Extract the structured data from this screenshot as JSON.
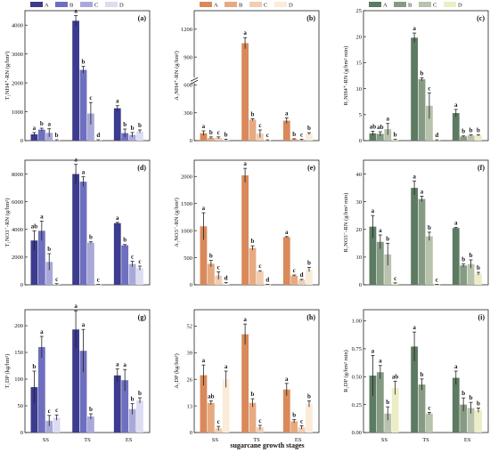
{
  "figure": {
    "xlabel": "sugarcane growth stages",
    "stages": [
      "SS",
      "TS",
      "ES"
    ],
    "legend_labels": [
      "A",
      "B",
      "C",
      "D"
    ],
    "colors": {
      "blue": [
        "#3b3b8f",
        "#6f6fbf",
        "#a9a9d9",
        "#dcdcf3"
      ],
      "orange": [
        "#d9895a",
        "#e6aa82",
        "#f1cdb2",
        "#faecd9"
      ],
      "green": [
        "#5d7a62",
        "#869b84",
        "#b8c2ac",
        "#ecedc4"
      ]
    }
  },
  "chart_data": [
    {
      "id": "a",
      "panel_label": "(a)",
      "type": "bar",
      "color_group": "blue",
      "ylabel": "T₁NH4⁺-RN (g/hm²)",
      "ylim": [
        0,
        4500
      ],
      "yticks": [
        0,
        1000,
        2000,
        3000,
        4000
      ],
      "categories": [
        "SS",
        "TS",
        "ES"
      ],
      "series": [
        {
          "name": "A",
          "values": [
            220,
            4150,
            1120
          ],
          "err": [
            60,
            180,
            90
          ]
        },
        {
          "name": "B",
          "values": [
            380,
            2450,
            260
          ],
          "err": [
            50,
            120,
            140
          ]
        },
        {
          "name": "C",
          "values": [
            270,
            940,
            200
          ],
          "err": [
            140,
            380,
            80
          ]
        },
        {
          "name": "D",
          "values": [
            20,
            20,
            320
          ],
          "err": [
            10,
            10,
            50
          ]
        }
      ],
      "letters": [
        [
          "a",
          "a",
          "a"
        ],
        [
          "b",
          "b",
          "b"
        ],
        [
          "a",
          "c",
          "b"
        ],
        [
          "b",
          "d",
          "b"
        ]
      ]
    },
    {
      "id": "b",
      "panel_label": "(b)",
      "type": "bar",
      "color_group": "orange",
      "ylabel": "A₁NH4⁺-RN (g/hm²)",
      "ylim": [
        0,
        1400
      ],
      "yticks": [
        0,
        300,
        600,
        900,
        1200
      ],
      "categories": [
        "SS",
        "TS",
        "ES"
      ],
      "axis_break": true,
      "series": [
        {
          "name": "A",
          "values": [
            80,
            1050,
            215
          ],
          "err": [
            25,
            60,
            30
          ]
        },
        {
          "name": "B",
          "values": [
            30,
            225,
            15
          ],
          "err": [
            10,
            10,
            5
          ]
        },
        {
          "name": "C",
          "values": [
            30,
            75,
            10
          ],
          "err": [
            10,
            40,
            5
          ]
        },
        {
          "name": "D",
          "values": [
            10,
            5,
            75
          ],
          "err": [
            5,
            3,
            10
          ]
        }
      ],
      "letters": [
        [
          "a",
          "a",
          "a"
        ],
        [
          "b",
          "b",
          "b"
        ],
        [
          "c",
          "c",
          "c"
        ],
        [
          "b",
          "c",
          "b"
        ]
      ]
    },
    {
      "id": "c",
      "panel_label": "(c)",
      "type": "bar",
      "color_group": "green",
      "ylabel": "R₁NH4⁺-RN (g/hm² min)",
      "ylim": [
        0,
        25
      ],
      "yticks": [
        0,
        5,
        10,
        15,
        20,
        25
      ],
      "categories": [
        "SS",
        "TS",
        "ES"
      ],
      "series": [
        {
          "name": "A",
          "values": [
            1.4,
            19.8,
            5.3
          ],
          "err": [
            0.4,
            0.9,
            0.7
          ]
        },
        {
          "name": "B",
          "values": [
            1.3,
            11.8,
            0.8
          ],
          "err": [
            0.4,
            0.3,
            0.1
          ]
        },
        {
          "name": "C",
          "values": [
            2.2,
            6.7,
            1.0
          ],
          "err": [
            1.1,
            2.5,
            0.1
          ]
        },
        {
          "name": "D",
          "values": [
            0.2,
            0.1,
            1.0
          ],
          "err": [
            0.05,
            0.05,
            0.1
          ]
        }
      ],
      "letters": [
        [
          "ab",
          "a",
          "a"
        ],
        [
          "ab",
          "b",
          "b"
        ],
        [
          "a",
          "c",
          "b"
        ],
        [
          "b",
          "d",
          "b"
        ]
      ]
    },
    {
      "id": "d",
      "panel_label": "(d)",
      "type": "bar",
      "color_group": "blue",
      "ylabel": "T₁NO3⁻-RN (g/hm²)",
      "ylim": [
        0,
        9000
      ],
      "yticks": [
        0,
        2000,
        4000,
        6000,
        8000
      ],
      "categories": [
        "SS",
        "TS",
        "ES"
      ],
      "series": [
        {
          "name": "A",
          "values": [
            3200,
            8000,
            4450
          ],
          "err": [
            700,
            700,
            60
          ]
        },
        {
          "name": "B",
          "values": [
            3900,
            7450,
            2850
          ],
          "err": [
            700,
            350,
            60
          ]
        },
        {
          "name": "C",
          "values": [
            1650,
            3050,
            1500
          ],
          "err": [
            600,
            60,
            200
          ]
        },
        {
          "name": "D",
          "values": [
            50,
            20,
            1200
          ],
          "err": [
            30,
            10,
            150
          ]
        }
      ],
      "letters": [
        [
          "ab",
          "a",
          "a"
        ],
        [
          "a",
          "a",
          "b"
        ],
        [
          "b",
          "b",
          "c"
        ],
        [
          "c",
          "c",
          "c"
        ]
      ]
    },
    {
      "id": "e",
      "panel_label": "(e)",
      "type": "bar",
      "color_group": "orange",
      "ylabel": "A₁NO3⁻-RN (g/hm²)",
      "ylim": [
        0,
        2300
      ],
      "yticks": [
        0,
        500,
        1000,
        1500,
        2000
      ],
      "categories": [
        "SS",
        "TS",
        "ES"
      ],
      "series": [
        {
          "name": "A",
          "values": [
            1080,
            2020,
            880
          ],
          "err": [
            250,
            130,
            10
          ]
        },
        {
          "name": "B",
          "values": [
            390,
            680,
            170
          ],
          "err": [
            60,
            40,
            10
          ]
        },
        {
          "name": "C",
          "values": [
            170,
            250,
            90
          ],
          "err": [
            70,
            10,
            10
          ]
        },
        {
          "name": "D",
          "values": [
            30,
            5,
            280
          ],
          "err": [
            10,
            2,
            40
          ]
        }
      ],
      "letters": [
        [
          "a",
          "a",
          "a"
        ],
        [
          "b",
          "b",
          "c"
        ],
        [
          "c",
          "c",
          "d"
        ],
        [
          "d",
          "d",
          "b"
        ]
      ]
    },
    {
      "id": "f",
      "panel_label": "(f)",
      "type": "bar",
      "color_group": "green",
      "ylabel": "R₁NO3⁻-RN (g/hm² min)",
      "ylim": [
        0,
        45
      ],
      "yticks": [
        0,
        10,
        20,
        30,
        40
      ],
      "categories": [
        "SS",
        "TS",
        "ES"
      ],
      "series": [
        {
          "name": "A",
          "values": [
            21,
            35,
            20.5
          ],
          "err": [
            4,
            2.5,
            0.2
          ]
        },
        {
          "name": "B",
          "values": [
            15.5,
            31,
            7
          ],
          "err": [
            2.5,
            1,
            0.5
          ]
        },
        {
          "name": "C",
          "values": [
            11,
            17.5,
            7.5
          ],
          "err": [
            4,
            1.5,
            1.5
          ]
        },
        {
          "name": "D",
          "values": [
            0.5,
            0.1,
            4
          ],
          "err": [
            0.2,
            0.05,
            0.5
          ]
        }
      ],
      "letters": [
        [
          "a",
          "a",
          "a"
        ],
        [
          "a",
          "a",
          "b"
        ],
        [
          "b",
          "b",
          "b"
        ],
        [
          "c",
          "c",
          "b"
        ]
      ]
    },
    {
      "id": "g",
      "panel_label": "(g)",
      "type": "bar",
      "color_group": "blue",
      "ylabel": "T₁DP (kg/hm²)",
      "ylim": [
        0,
        230
      ],
      "yticks": [
        0,
        50,
        100,
        150,
        200
      ],
      "categories": [
        "SS",
        "TS",
        "ES"
      ],
      "series": [
        {
          "name": "A",
          "values": [
            85,
            193,
            107
          ],
          "err": [
            30,
            35,
            12
          ]
        },
        {
          "name": "B",
          "values": [
            160,
            153,
            98
          ],
          "err": [
            20,
            40,
            20
          ]
        },
        {
          "name": "C",
          "values": [
            22,
            30,
            44
          ],
          "err": [
            10,
            5,
            10
          ]
        },
        {
          "name": "D",
          "values": [
            28,
            0,
            60
          ],
          "err": [
            5,
            0,
            5
          ]
        }
      ],
      "letters": [
        [
          "b",
          "a",
          "a"
        ],
        [
          "a",
          "a",
          "a"
        ],
        [
          "c",
          "b",
          "b"
        ],
        [
          "c",
          "",
          "b"
        ]
      ]
    },
    {
      "id": "h",
      "panel_label": "(h)",
      "type": "bar",
      "color_group": "orange",
      "ylabel": "A₁DP (kg/hm²)",
      "ylim": [
        0,
        60
      ],
      "yticks": [
        0,
        13,
        26,
        39,
        52
      ],
      "categories": [
        "SS",
        "TS",
        "ES"
      ],
      "series": [
        {
          "name": "A",
          "values": [
            28,
            48,
            21
          ],
          "err": [
            5,
            5,
            3
          ]
        },
        {
          "name": "B",
          "values": [
            14.5,
            14.5,
            5.5
          ],
          "err": [
            1,
            2,
            0.8
          ]
        },
        {
          "name": "C",
          "values": [
            2,
            2.5,
            2.5
          ],
          "err": [
            1,
            1,
            0.8
          ]
        },
        {
          "name": "D",
          "values": [
            26,
            0,
            14
          ],
          "err": [
            4,
            0,
            1.5
          ]
        }
      ],
      "letters": [
        [
          "a",
          "a",
          "a"
        ],
        [
          "ab",
          "b",
          "b"
        ],
        [
          "c",
          "c",
          "c"
        ],
        [
          "a",
          "",
          "b"
        ]
      ]
    },
    {
      "id": "i",
      "panel_label": "(i)",
      "type": "bar",
      "color_group": "green",
      "ylabel": "R₁DP (g/hm² min)",
      "ylim": [
        0,
        1.1
      ],
      "yticks": [
        0.0,
        0.25,
        0.5,
        0.75,
        1.0
      ],
      "ytick_labels": [
        "0.00",
        "0.25",
        "0.50",
        "0.75",
        "1.00"
      ],
      "categories": [
        "SS",
        "TS",
        "ES"
      ],
      "series": [
        {
          "name": "A",
          "values": [
            0.51,
            0.77,
            0.49
          ],
          "err": [
            0.18,
            0.13,
            0.06
          ]
        },
        {
          "name": "B",
          "values": [
            0.54,
            0.43,
            0.25
          ],
          "err": [
            0.06,
            0.05,
            0.06
          ]
        },
        {
          "name": "C",
          "values": [
            0.17,
            0.17,
            0.22
          ],
          "err": [
            0.06,
            0.01,
            0.05
          ]
        },
        {
          "name": "D",
          "values": [
            0.4,
            0.0,
            0.2
          ],
          "err": [
            0.06,
            0.0,
            0.02
          ]
        }
      ],
      "letters": [
        [
          "a",
          "a",
          "a"
        ],
        [
          "a",
          "b",
          "b"
        ],
        [
          "b",
          "c",
          "b"
        ],
        [
          "ab",
          "",
          "b"
        ]
      ]
    }
  ]
}
